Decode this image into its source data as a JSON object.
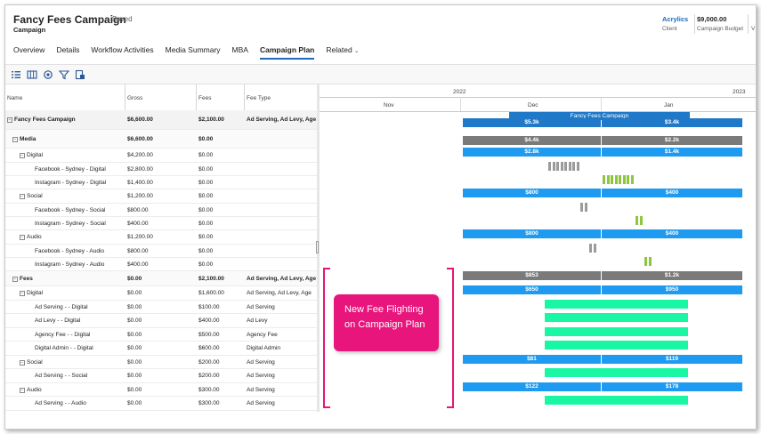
{
  "header": {
    "title": "Fancy Fees Campaign",
    "saved": "- Saved",
    "entity": "Campaign",
    "fields": [
      {
        "value": "Acrylics",
        "label": "Client"
      },
      {
        "value": "$9,000.00",
        "label": "Campaign Budget"
      }
    ],
    "more_label": "V"
  },
  "tabs": [
    {
      "label": "Overview"
    },
    {
      "label": "Details"
    },
    {
      "label": "Workflow Activities"
    },
    {
      "label": "Media Summary"
    },
    {
      "label": "MBA"
    },
    {
      "label": "Campaign Plan",
      "active": true
    },
    {
      "label": "Related"
    }
  ],
  "toolbar": {
    "icons": [
      "list-view-icon",
      "columns-icon",
      "settings-icon",
      "filter-icon",
      "export-icon"
    ]
  },
  "grid": {
    "columns": [
      "Name",
      "Gross",
      "Fees",
      "Fee Type"
    ],
    "rows": [
      {
        "name": "Fancy Fees Campaign",
        "gross": "$6,600.00",
        "fees": "$2,100.00",
        "fee_type": "Ad Serving, Ad Levy, Age",
        "level": 0,
        "toggle": "−",
        "bold": true
      },
      {
        "name": "Media",
        "gross": "$6,600.00",
        "fees": "$0.00",
        "fee_type": "",
        "level": 1,
        "toggle": "−",
        "bold": true
      },
      {
        "name": "Digital",
        "gross": "$4,200.00",
        "fees": "$0.00",
        "fee_type": "",
        "level": 2,
        "toggle": "−"
      },
      {
        "name": "Facebook - Sydney - Digital",
        "gross": "$2,800.00",
        "fees": "$0.00",
        "fee_type": "",
        "level": 3
      },
      {
        "name": "Instagram - Sydney - Digital",
        "gross": "$1,400.00",
        "fees": "$0.00",
        "fee_type": "",
        "level": 3
      },
      {
        "name": "Social",
        "gross": "$1,200.00",
        "fees": "$0.00",
        "fee_type": "",
        "level": 2,
        "toggle": "−"
      },
      {
        "name": "Facebook - Sydney - Social",
        "gross": "$800.00",
        "fees": "$0.00",
        "fee_type": "",
        "level": 3
      },
      {
        "name": "Instagram - Sydney - Social",
        "gross": "$400.00",
        "fees": "$0.00",
        "fee_type": "",
        "level": 3
      },
      {
        "name": "Audio",
        "gross": "$1,200.00",
        "fees": "$0.00",
        "fee_type": "",
        "level": 2,
        "toggle": "−"
      },
      {
        "name": "Facebook - Sydney - Audio",
        "gross": "$800.00",
        "fees": "$0.00",
        "fee_type": "",
        "level": 3
      },
      {
        "name": "Instagram - Sydney - Audio",
        "gross": "$400.00",
        "fees": "$0.00",
        "fee_type": "",
        "level": 3
      },
      {
        "name": "Fees",
        "gross": "$0.00",
        "fees": "$2,100.00",
        "fee_type": "Ad Serving, Ad Levy, Age",
        "level": 1,
        "toggle": "−",
        "bold": true
      },
      {
        "name": "Digital",
        "gross": "$0.00",
        "fees": "$1,600.00",
        "fee_type": "Ad Serving, Ad Levy, Age",
        "level": 2,
        "toggle": "−"
      },
      {
        "name": "Ad Serving - - Digital",
        "gross": "$0.00",
        "fees": "$100.00",
        "fee_type": "Ad Serving",
        "level": 3
      },
      {
        "name": "Ad Levy - - Digital",
        "gross": "$0.00",
        "fees": "$400.00",
        "fee_type": "Ad Levy",
        "level": 3
      },
      {
        "name": "Agency Fee - - Digital",
        "gross": "$0.00",
        "fees": "$500.00",
        "fee_type": "Agency Fee",
        "level": 3
      },
      {
        "name": "Digital Admin - - Digital",
        "gross": "$0.00",
        "fees": "$600.00",
        "fee_type": "Digital Admin",
        "level": 3
      },
      {
        "name": "Social",
        "gross": "$0.00",
        "fees": "$200.00",
        "fee_type": "Ad Serving",
        "level": 2,
        "toggle": "−"
      },
      {
        "name": "Ad Serving - - Social",
        "gross": "$0.00",
        "fees": "$200.00",
        "fee_type": "Ad Serving",
        "level": 3
      },
      {
        "name": "Audio",
        "gross": "$0.00",
        "fees": "$300.00",
        "fee_type": "Ad Serving",
        "level": 2,
        "toggle": "−"
      },
      {
        "name": "Ad Serving - - Audio",
        "gross": "$0.00",
        "fees": "$300.00",
        "fee_type": "Ad Serving",
        "level": 3
      }
    ]
  },
  "timeline": {
    "years": [
      "2022",
      "2023"
    ],
    "months": [
      "Nov",
      "Dec",
      "Jan"
    ],
    "campaign_label": "Fancy Fees Campaign"
  },
  "bars": [
    {
      "row": 0,
      "labels": [
        "$5.3k",
        "$3.4k"
      ],
      "color": "dblue"
    },
    {
      "row": 1,
      "labels": [
        "$4.4k",
        "$2.2k"
      ],
      "color": "grey"
    },
    {
      "row": 2,
      "labels": [
        "$2.8k",
        "$1.4k"
      ],
      "color": "blue"
    },
    {
      "row": 5,
      "labels": [
        "$800",
        "$400"
      ],
      "color": "blue"
    },
    {
      "row": 8,
      "labels": [
        "$800",
        "$400"
      ],
      "color": "blue"
    },
    {
      "row": 11,
      "labels": [
        "$853",
        "$1.2k"
      ],
      "color": "grey"
    },
    {
      "row": 12,
      "labels": [
        "$650",
        "$950"
      ],
      "color": "blue"
    },
    {
      "row": 17,
      "labels": [
        "$81",
        "$119"
      ],
      "color": "blue"
    },
    {
      "row": 19,
      "labels": [
        "$122",
        "$178"
      ],
      "color": "blue"
    }
  ],
  "callout": {
    "line1": "New Fee Flighting",
    "line2": "on Campaign Plan"
  },
  "colors": {
    "accent": "#1f6bb5",
    "bar_blue": "#1e9bf0",
    "bar_grey": "#7a7a7a",
    "fee_flight": "#19f7a4",
    "callout": "#e8157d"
  }
}
